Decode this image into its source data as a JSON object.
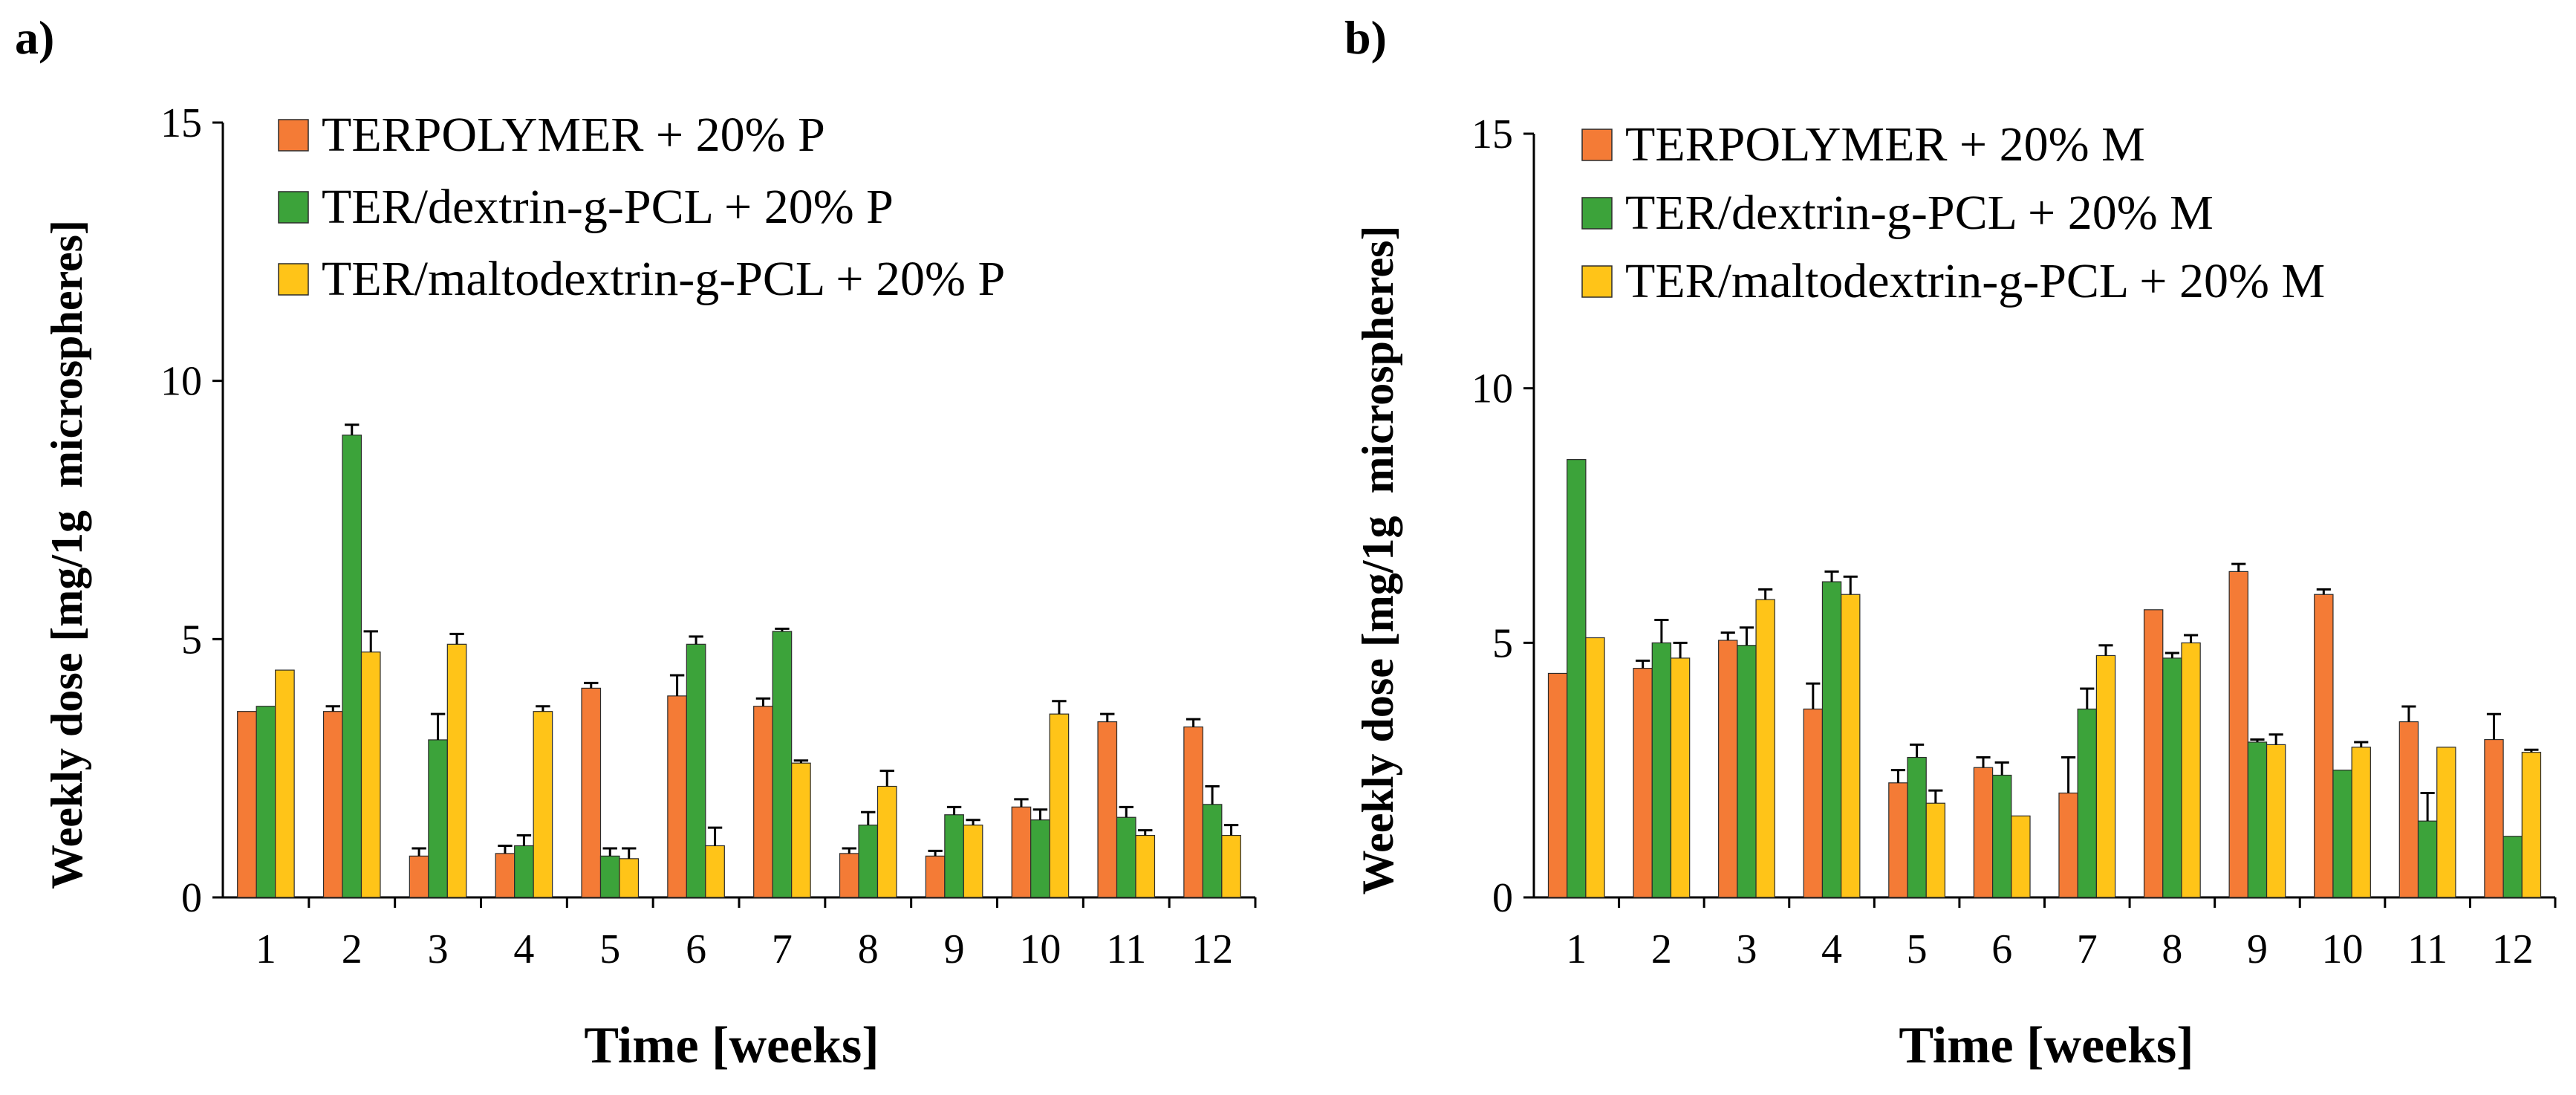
{
  "chart_data": [
    {
      "panel_label": "a)",
      "type": "bar",
      "title": "",
      "xlabel": "Time [weeks]",
      "ylabel": "Weekly dose [mg/1g  microspheres]",
      "ylim": [
        0,
        15
      ],
      "yticks": [
        "0",
        "5",
        "10",
        "15"
      ],
      "ytick_values": [
        0,
        5,
        10,
        15
      ],
      "categories": [
        "1",
        "2",
        "3",
        "4",
        "5",
        "6",
        "7",
        "8",
        "9",
        "10",
        "11",
        "12"
      ],
      "legend_position": "top-left",
      "series": [
        {
          "name": "TERPOLYMER + 20% P",
          "color": "#F47B36",
          "values": [
            3.6,
            3.6,
            0.8,
            0.85,
            4.05,
            3.9,
            3.7,
            0.85,
            0.8,
            1.75,
            3.4,
            3.3
          ],
          "errors": [
            0.0,
            0.1,
            0.15,
            0.15,
            0.1,
            0.4,
            0.15,
            0.1,
            0.1,
            0.15,
            0.15,
            0.15
          ]
        },
        {
          "name": "TER/dextrin-g-PCL + 20% P",
          "color": "#3CA33A",
          "values": [
            3.7,
            8.95,
            3.05,
            1.0,
            0.8,
            4.9,
            5.15,
            1.4,
            1.6,
            1.5,
            1.55,
            1.8
          ],
          "errors": [
            0.0,
            0.2,
            0.5,
            0.2,
            0.15,
            0.15,
            0.05,
            0.25,
            0.15,
            0.2,
            0.2,
            0.35
          ]
        },
        {
          "name": "TER/maltodextrin-g-PCL + 20% P",
          "color": "#FFC418",
          "values": [
            4.4,
            4.75,
            4.9,
            3.6,
            0.75,
            1.0,
            2.6,
            2.15,
            1.4,
            3.55,
            1.2,
            1.2
          ],
          "errors": [
            0.0,
            0.4,
            0.2,
            0.1,
            0.2,
            0.35,
            0.05,
            0.3,
            0.1,
            0.25,
            0.1,
            0.2
          ]
        }
      ]
    },
    {
      "panel_label": "b)",
      "type": "bar",
      "title": "",
      "xlabel": "Time [weeks]",
      "ylabel": "Weekly dose [mg/1g  microspheres]",
      "ylim": [
        0,
        15
      ],
      "yticks": [
        "0",
        "5",
        "10",
        "15"
      ],
      "ytick_values": [
        0,
        5,
        10,
        15
      ],
      "categories": [
        "1",
        "2",
        "3",
        "4",
        "5",
        "6",
        "7",
        "8",
        "9",
        "10",
        "11",
        "12"
      ],
      "legend_position": "top-left",
      "series": [
        {
          "name": "TERPOLYMER + 20% M",
          "color": "#F47B36",
          "values": [
            4.4,
            4.5,
            5.05,
            3.7,
            2.25,
            2.55,
            2.05,
            5.65,
            6.4,
            5.95,
            3.45,
            3.1
          ],
          "errors": [
            0.0,
            0.15,
            0.15,
            0.5,
            0.25,
            0.2,
            0.7,
            0.0,
            0.15,
            0.1,
            0.3,
            0.5
          ]
        },
        {
          "name": "TER/dextrin-g-PCL + 20% M",
          "color": "#3CA33A",
          "values": [
            8.6,
            5.0,
            4.95,
            6.2,
            2.75,
            2.4,
            3.7,
            4.7,
            3.05,
            2.5,
            1.5,
            1.2
          ],
          "errors": [
            0.0,
            0.45,
            0.35,
            0.2,
            0.25,
            0.25,
            0.4,
            0.1,
            0.05,
            0.0,
            0.55,
            0.0
          ]
        },
        {
          "name": "TER/maltodextrin-g-PCL + 20% M",
          "color": "#FFC418",
          "values": [
            5.1,
            4.7,
            5.85,
            5.95,
            1.85,
            1.6,
            4.75,
            5.0,
            3.0,
            2.95,
            2.95,
            2.85
          ],
          "errors": [
            0.0,
            0.3,
            0.2,
            0.35,
            0.25,
            0.0,
            0.2,
            0.15,
            0.2,
            0.1,
            0.0,
            0.05
          ]
        }
      ]
    }
  ]
}
